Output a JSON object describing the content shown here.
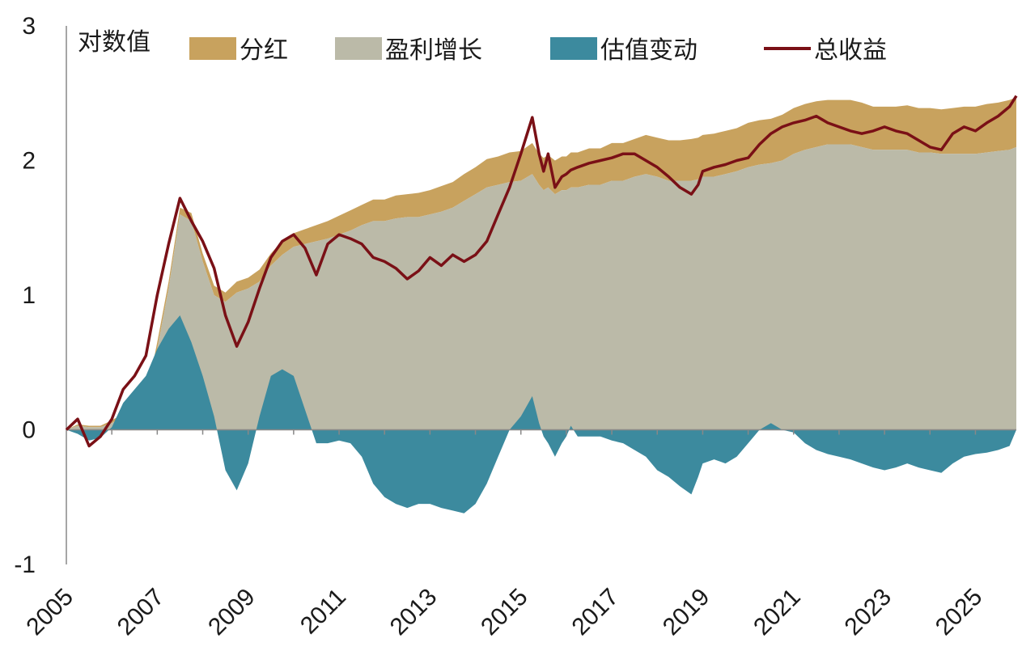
{
  "chart_data": {
    "type": "area",
    "y_unit_label": "对数值",
    "ylim": [
      -1,
      3
    ],
    "y_ticks": [
      "-1",
      "0",
      "1",
      "2",
      "3"
    ],
    "x_range": [
      2005.0,
      2025.9
    ],
    "x_ticks": [
      "2005",
      "2007",
      "2009",
      "2011",
      "2013",
      "2015",
      "2017",
      "2019",
      "2021",
      "2023",
      "2025"
    ],
    "grid": false,
    "legend_position": "top",
    "colors": {
      "dividend": "#C8A25E",
      "earnings_growth": "#BBBAA8",
      "valuation_change": "#3C8A9E",
      "total_return": "#7A1016",
      "axis": "#888888"
    },
    "legend": {
      "dividend": "分红",
      "earnings_growth": "盈利增长",
      "valuation_change": "估值变动",
      "total_return": "总收益"
    },
    "x": [
      2005.0,
      2005.25,
      2005.5,
      2005.75,
      2006.0,
      2006.25,
      2006.5,
      2006.75,
      2007.0,
      2007.25,
      2007.5,
      2007.75,
      2008.0,
      2008.25,
      2008.5,
      2008.75,
      2009.0,
      2009.25,
      2009.5,
      2009.75,
      2010.0,
      2010.25,
      2010.5,
      2010.75,
      2011.0,
      2011.25,
      2011.5,
      2011.75,
      2012.0,
      2012.25,
      2012.5,
      2012.75,
      2013.0,
      2013.25,
      2013.5,
      2013.75,
      2014.0,
      2014.25,
      2014.5,
      2014.75,
      2015.0,
      2015.25,
      2015.4,
      2015.5,
      2015.6,
      2015.75,
      2015.9,
      2016.0,
      2016.1,
      2016.25,
      2016.5,
      2016.75,
      2017.0,
      2017.25,
      2017.5,
      2017.75,
      2018.0,
      2018.25,
      2018.5,
      2018.75,
      2018.9,
      2019.0,
      2019.25,
      2019.5,
      2019.75,
      2020.0,
      2020.25,
      2020.5,
      2020.75,
      2021.0,
      2021.25,
      2021.5,
      2021.75,
      2022.0,
      2022.25,
      2022.5,
      2022.75,
      2023.0,
      2023.25,
      2023.5,
      2023.75,
      2024.0,
      2024.25,
      2024.5,
      2024.75,
      2025.0,
      2025.25,
      2025.5,
      2025.75,
      2025.9
    ],
    "series": [
      {
        "name": "总收益",
        "key": "total_return",
        "values": [
          0.0,
          0.08,
          -0.12,
          -0.05,
          0.08,
          0.3,
          0.4,
          0.55,
          1.0,
          1.38,
          1.72,
          1.55,
          1.4,
          1.2,
          0.85,
          0.62,
          0.8,
          1.05,
          1.28,
          1.4,
          1.45,
          1.35,
          1.15,
          1.38,
          1.45,
          1.42,
          1.38,
          1.28,
          1.25,
          1.2,
          1.12,
          1.18,
          1.28,
          1.22,
          1.3,
          1.25,
          1.3,
          1.4,
          1.6,
          1.8,
          2.05,
          2.32,
          2.05,
          1.92,
          2.05,
          1.8,
          1.88,
          1.9,
          1.93,
          1.95,
          1.98,
          2.0,
          2.02,
          2.05,
          2.05,
          2.0,
          1.95,
          1.88,
          1.8,
          1.75,
          1.82,
          1.92,
          1.95,
          1.97,
          2.0,
          2.02,
          2.12,
          2.2,
          2.25,
          2.28,
          2.3,
          2.33,
          2.28,
          2.25,
          2.22,
          2.2,
          2.22,
          2.25,
          2.22,
          2.2,
          2.15,
          2.1,
          2.08,
          2.2,
          2.25,
          2.22,
          2.28,
          2.33,
          2.4,
          2.48
        ]
      },
      {
        "name": "估值变动",
        "key": "valuation_change",
        "values": [
          0.0,
          -0.03,
          -0.08,
          -0.06,
          0.02,
          0.2,
          0.3,
          0.4,
          0.6,
          0.75,
          0.85,
          0.65,
          0.4,
          0.1,
          -0.3,
          -0.45,
          -0.25,
          0.1,
          0.4,
          0.45,
          0.4,
          0.15,
          -0.1,
          -0.1,
          -0.08,
          -0.1,
          -0.2,
          -0.4,
          -0.5,
          -0.55,
          -0.58,
          -0.55,
          -0.55,
          -0.58,
          -0.6,
          -0.62,
          -0.55,
          -0.4,
          -0.2,
          0.0,
          0.1,
          0.25,
          0.05,
          -0.05,
          -0.1,
          -0.2,
          -0.1,
          -0.05,
          0.03,
          -0.05,
          -0.05,
          -0.05,
          -0.08,
          -0.1,
          -0.15,
          -0.2,
          -0.3,
          -0.35,
          -0.42,
          -0.48,
          -0.35,
          -0.25,
          -0.22,
          -0.25,
          -0.2,
          -0.1,
          0.0,
          0.05,
          0.0,
          -0.02,
          -0.1,
          -0.15,
          -0.18,
          -0.2,
          -0.22,
          -0.25,
          -0.28,
          -0.3,
          -0.28,
          -0.25,
          -0.28,
          -0.3,
          -0.32,
          -0.25,
          -0.2,
          -0.18,
          -0.17,
          -0.15,
          -0.12,
          0.0
        ]
      },
      {
        "name": "盈利增长",
        "key": "earnings_growth",
        "values": [
          0.0,
          0.03,
          0.02,
          0.02,
          0.05,
          0.1,
          0.12,
          0.2,
          0.6,
          1.05,
          1.6,
          1.55,
          1.25,
          1.0,
          0.95,
          1.02,
          1.05,
          1.1,
          1.22,
          1.3,
          1.36,
          1.38,
          1.4,
          1.42,
          1.45,
          1.48,
          1.52,
          1.55,
          1.55,
          1.57,
          1.58,
          1.58,
          1.6,
          1.62,
          1.65,
          1.7,
          1.75,
          1.8,
          1.82,
          1.84,
          1.85,
          1.9,
          1.82,
          1.78,
          1.8,
          1.75,
          1.78,
          1.78,
          1.8,
          1.8,
          1.82,
          1.82,
          1.85,
          1.85,
          1.88,
          1.9,
          1.88,
          1.85,
          1.85,
          1.85,
          1.86,
          1.88,
          1.88,
          1.9,
          1.92,
          1.95,
          1.97,
          1.98,
          2.0,
          2.05,
          2.08,
          2.1,
          2.12,
          2.12,
          2.12,
          2.1,
          2.08,
          2.08,
          2.08,
          2.08,
          2.06,
          2.06,
          2.05,
          2.05,
          2.05,
          2.05,
          2.06,
          2.07,
          2.08,
          2.1
        ]
      },
      {
        "name": "分红",
        "key": "dividend",
        "values": [
          0.0,
          0.01,
          0.01,
          0.01,
          0.02,
          0.02,
          0.03,
          0.03,
          0.05,
          0.05,
          0.05,
          0.06,
          0.06,
          0.07,
          0.07,
          0.08,
          0.08,
          0.09,
          0.09,
          0.1,
          0.1,
          0.11,
          0.12,
          0.13,
          0.14,
          0.15,
          0.15,
          0.16,
          0.16,
          0.17,
          0.17,
          0.18,
          0.18,
          0.19,
          0.19,
          0.2,
          0.2,
          0.21,
          0.21,
          0.22,
          0.22,
          0.23,
          0.23,
          0.24,
          0.24,
          0.25,
          0.25,
          0.25,
          0.26,
          0.26,
          0.27,
          0.27,
          0.28,
          0.28,
          0.28,
          0.29,
          0.29,
          0.3,
          0.3,
          0.31,
          0.31,
          0.31,
          0.32,
          0.32,
          0.32,
          0.33,
          0.33,
          0.33,
          0.34,
          0.34,
          0.34,
          0.34,
          0.33,
          0.33,
          0.33,
          0.33,
          0.32,
          0.32,
          0.32,
          0.33,
          0.33,
          0.33,
          0.33,
          0.34,
          0.35,
          0.35,
          0.36,
          0.36,
          0.37,
          0.37
        ]
      }
    ]
  }
}
